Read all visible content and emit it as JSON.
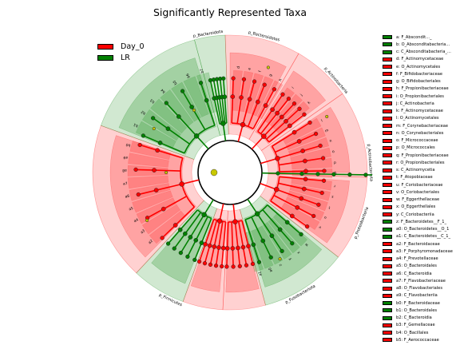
{
  "title": "Significantly Represented Taxa",
  "groups": [
    {
      "name": "Day_0",
      "color": "#ff0000"
    },
    {
      "name": "LR",
      "color": "#008000"
    }
  ],
  "phyla": [
    {
      "label": "p_Bacteroidota",
      "group": "LR"
    },
    {
      "label": "p_Bacteroidetes",
      "group": "Day_0"
    },
    {
      "label": "p_Actinobacteria",
      "group": "Day_0"
    },
    {
      "label": "p_Actinobacteriota",
      "group": "Day_0"
    },
    {
      "label": "p_Proteobacteria",
      "group": "LR"
    },
    {
      "label": "p_Fusobacteriota",
      "group": "Day_0"
    },
    {
      "label": "p_Firmicutes",
      "group": "LR"
    }
  ],
  "clade_legend": [
    {
      "key": "a",
      "text": "a: F_Abscondit..._",
      "group": "LR"
    },
    {
      "key": "b",
      "text": "b: O_Absconditabacteria...",
      "group": "LR"
    },
    {
      "key": "c",
      "text": "c: C_Absconditabacteria_...",
      "group": "LR"
    },
    {
      "key": "d",
      "text": "d: F_Actinomycetaceae",
      "group": "Day_0"
    },
    {
      "key": "e",
      "text": "e: O_Actinomycetales",
      "group": "Day_0"
    },
    {
      "key": "f",
      "text": "f: F_Bifidobacteriaceae",
      "group": "Day_0"
    },
    {
      "key": "g",
      "text": "g: O_Bifidobacteriales",
      "group": "Day_0"
    },
    {
      "key": "h",
      "text": "h: F_Propionibacteriaceae",
      "group": "Day_0"
    },
    {
      "key": "i",
      "text": "i: O_Propionibacteriales",
      "group": "Day_0"
    },
    {
      "key": "j",
      "text": "j: C_Actinobacteria",
      "group": "Day_0"
    },
    {
      "key": "k",
      "text": "k: F_Actinomycetaceae",
      "group": "Day_0"
    },
    {
      "key": "l",
      "text": "l: O_Actinomycetales",
      "group": "Day_0"
    },
    {
      "key": "m",
      "text": "m: F_Corynebacteriaceae",
      "group": "Day_0"
    },
    {
      "key": "n",
      "text": "n: O_Corynebacteriales",
      "group": "Day_0"
    },
    {
      "key": "o",
      "text": "o: F_Micrococcaceae",
      "group": "Day_0"
    },
    {
      "key": "p",
      "text": "p: O_Micrococcales",
      "group": "Day_0"
    },
    {
      "key": "q",
      "text": "q: F_Propionibacteriaceae",
      "group": "Day_0"
    },
    {
      "key": "r",
      "text": "r: O_Propionibacteriales",
      "group": "Day_0"
    },
    {
      "key": "s",
      "text": "s: C_Actinomycetia",
      "group": "Day_0"
    },
    {
      "key": "t",
      "text": "t: F_Atopobiaceae",
      "group": "Day_0"
    },
    {
      "key": "u",
      "text": "u: F_Coriobacteriaceae",
      "group": "Day_0"
    },
    {
      "key": "v",
      "text": "v: O_Coriobacteriales",
      "group": "Day_0"
    },
    {
      "key": "w",
      "text": "w: F_Eggerthellaceae",
      "group": "Day_0"
    },
    {
      "key": "x",
      "text": "x: O_Eggerthellales",
      "group": "Day_0"
    },
    {
      "key": "y",
      "text": "y: C_Coriobacteriia",
      "group": "Day_0"
    },
    {
      "key": "z",
      "text": "z: F_Bacteroidetes__F_1_",
      "group": "LR"
    },
    {
      "key": "a0",
      "text": "a0: O_Bacteroidetes__O_1",
      "group": "LR"
    },
    {
      "key": "a1",
      "text": "a1: C_Bacteroidetes__C_1_",
      "group": "LR"
    },
    {
      "key": "a2",
      "text": "a2: F_Bacteroidaceae",
      "group": "Day_0"
    },
    {
      "key": "a3",
      "text": "a3: F_Porphyromonadaceae",
      "group": "Day_0"
    },
    {
      "key": "a4",
      "text": "a4: F_Prevotellaceae",
      "group": "Day_0"
    },
    {
      "key": "a5",
      "text": "a5: O_Bacteroidales",
      "group": "Day_0"
    },
    {
      "key": "a6",
      "text": "a6: C_Bacteroidia",
      "group": "Day_0"
    },
    {
      "key": "a7",
      "text": "a7: F_Flavobacteriaceae",
      "group": "Day_0"
    },
    {
      "key": "a8",
      "text": "a8: O_Flavobacteriales",
      "group": "Day_0"
    },
    {
      "key": "a9",
      "text": "a9: C_Flavobacteriia",
      "group": "Day_0"
    },
    {
      "key": "b0",
      "text": "b0: F_Bacteroidaceae",
      "group": "LR"
    },
    {
      "key": "b1",
      "text": "b1: O_Bacteroidales",
      "group": "LR"
    },
    {
      "key": "b2",
      "text": "b2: C_Bacteroidia",
      "group": "LR"
    },
    {
      "key": "b3",
      "text": "b3: F_Gemellaceae",
      "group": "Day_0"
    },
    {
      "key": "b4",
      "text": "b4: O_Bacillales",
      "group": "Day_0"
    },
    {
      "key": "b5",
      "text": "b5: F_Aerococcaceae",
      "group": "Day_0"
    },
    {
      "key": "b6",
      "text": "b6: F_Streptococcaceae",
      "group": "LR"
    },
    {
      "key": "b7",
      "text": "b7: O_Lactobacillales",
      "group": "LR"
    }
  ],
  "sector_labels": [
    "d",
    "e",
    "f",
    "g",
    "h",
    "i",
    "j",
    "k",
    "l",
    "m",
    "n",
    "o",
    "p",
    "q",
    "r",
    "s",
    "t",
    "u",
    "v",
    "w",
    "x",
    "y",
    "z",
    "a0",
    "a1",
    "a2",
    "a3",
    "a4",
    "a5",
    "a6",
    "a7",
    "a8",
    "a9",
    "b0",
    "b1",
    "b2",
    "b3",
    "b4",
    "b5",
    "b6",
    "b7",
    "b8",
    "b9",
    "c0",
    "c1",
    "c2",
    "c3",
    "c4",
    "c5",
    "c6",
    "c7",
    "c8",
    "c9",
    "d0",
    "d1",
    "d2",
    "d3",
    "d4",
    "d5",
    "d6",
    "d7",
    "d8",
    "d9",
    "e0",
    "e1",
    "e2",
    "e3",
    "e4",
    "e5",
    "e6",
    "e7",
    "e8",
    "e9",
    "f0",
    "f1",
    "f2",
    "f3",
    "f4",
    "f5",
    "f6",
    "f7",
    "f8",
    "f9",
    "g0",
    "g1",
    "g2",
    "g3",
    "g4",
    "g5",
    "g6",
    "g7",
    "g8",
    "g9",
    "h0",
    "h1",
    "h2",
    "h3",
    "h4",
    "h5",
    "h6",
    "h7",
    "h8",
    "h9",
    "i0",
    "i1",
    "i2",
    "i3",
    "i4",
    "i5",
    "i6",
    "i7",
    "i8",
    "i9",
    "j0",
    "j1",
    "j2",
    "j3",
    "j4",
    "j5",
    "j6",
    "j7",
    "j8"
  ]
}
